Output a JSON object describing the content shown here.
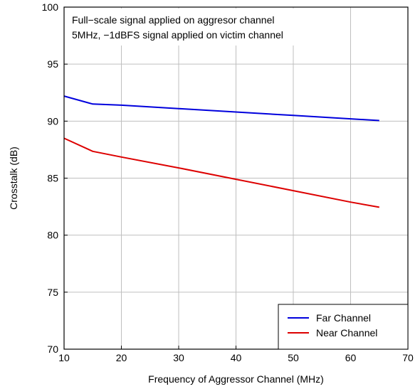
{
  "chart_data": {
    "type": "line",
    "xlabel": "Frequency of Aggressor Channel (MHz)",
    "ylabel": "Crosstalk (dB)",
    "xlim": [
      10,
      70
    ],
    "ylim": [
      70,
      100
    ],
    "x_ticks": [
      10,
      20,
      30,
      40,
      50,
      60,
      70
    ],
    "y_ticks": [
      70,
      75,
      80,
      85,
      90,
      95,
      100
    ],
    "grid": true,
    "annotation_lines": [
      "Full−scale signal applied on aggresor channel",
      "5MHz, −1dBFS signal applied on victim channel"
    ],
    "legend_position": "bottom-right",
    "series": [
      {
        "name": "Far Channel",
        "color": "#0000dd",
        "x": [
          10,
          15,
          20,
          30,
          40,
          50,
          60,
          65
        ],
        "y": [
          92.2,
          91.5,
          91.4,
          91.1,
          90.8,
          90.5,
          90.2,
          90.05
        ]
      },
      {
        "name": "Near Channel",
        "color": "#dd0000",
        "x": [
          10,
          15,
          20,
          30,
          40,
          50,
          60,
          65
        ],
        "y": [
          88.5,
          87.35,
          86.85,
          85.9,
          84.9,
          83.9,
          82.9,
          82.45
        ]
      }
    ]
  }
}
